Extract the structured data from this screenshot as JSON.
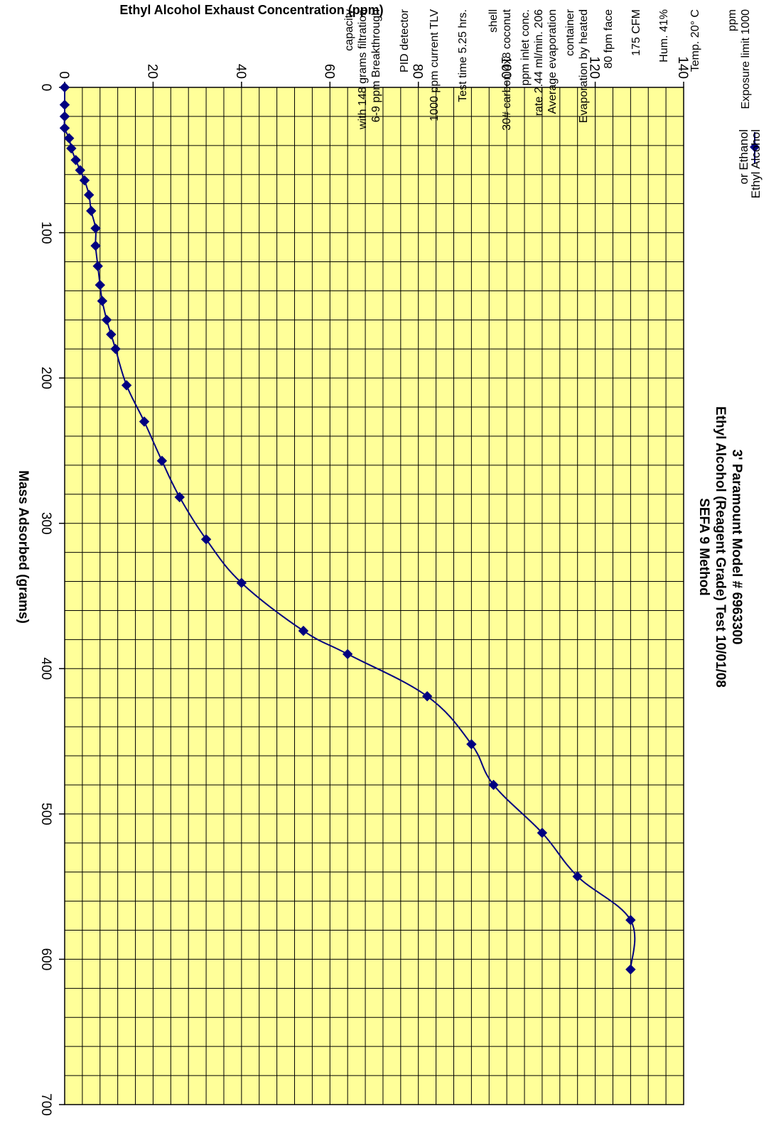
{
  "chart_data": {
    "type": "line",
    "title": "3' Paramount Model # 6963300",
    "subtitle_1": "Ethyl Alcohol (Reagent Grade) Test  10/01/08",
    "subtitle_2": "SEFA 9 Method",
    "xlabel": "Mass Adsorbed (grams)",
    "ylabel": "Ethyl Alcohol Exhaust Concentration (ppm)",
    "xlim": [
      0,
      700
    ],
    "ylim": [
      0,
      140
    ],
    "x_ticks": [
      0,
      100,
      200,
      300,
      400,
      500,
      600,
      700
    ],
    "y_ticks": [
      0,
      20,
      40,
      60,
      80,
      100,
      120,
      140
    ],
    "grid": true,
    "plot_background": "#ffff99",
    "series_color": "#000080",
    "legend_position": "right",
    "series": [
      {
        "name": "Ethyl Alcohol or Ethanol",
        "legend_lines": [
          "Ethyl Alcohol",
          "or Ethanol"
        ],
        "x": [
          0,
          12,
          20,
          28,
          35,
          42,
          50,
          57,
          64,
          74,
          85,
          97,
          109,
          123,
          136,
          147,
          160,
          170,
          180,
          205,
          230,
          257,
          282,
          311,
          341,
          374,
          390,
          419,
          452,
          480,
          513,
          543,
          573,
          607
        ],
        "y": [
          0,
          0,
          0,
          0,
          1,
          1.5,
          2.5,
          3.5,
          4.5,
          5.5,
          6,
          7,
          7,
          7.5,
          8,
          8.5,
          9.5,
          10.5,
          11.5,
          14,
          18,
          22,
          26,
          32,
          40,
          54,
          64,
          82,
          92,
          97,
          108,
          116,
          128,
          128
        ]
      }
    ],
    "annotations": [
      [
        "Exposure limit 1000",
        "ppm"
      ],
      [
        "Temp. 20° C"
      ],
      [
        "Hum. 41%"
      ],
      [
        "175 CFM"
      ],
      [
        "80 fpm face"
      ],
      [
        "Evaporation by heated",
        "container"
      ],
      [
        "Average evaporation",
        "rate 2.44 ml/min. 206",
        "ppm inlet conc."
      ],
      [
        "30# carbon 4x8 coconut",
        "shell"
      ],
      [
        "Test time 5.25 hrs."
      ],
      [
        "1000 ppm current TLV"
      ],
      [
        "PID detector"
      ],
      [
        "6-9 ppm Breakthrough",
        "with 148 grams filtration",
        "capacity"
      ]
    ]
  }
}
